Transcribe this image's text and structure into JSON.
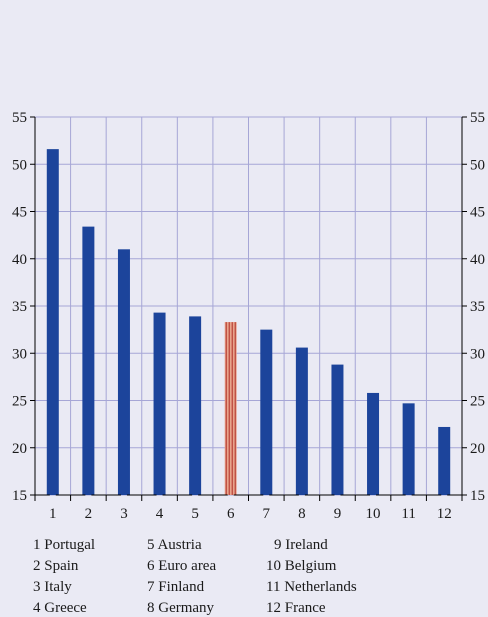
{
  "chart_data": {
    "type": "bar",
    "categories": [
      "1",
      "2",
      "3",
      "4",
      "5",
      "6",
      "7",
      "8",
      "9",
      "10",
      "11",
      "12"
    ],
    "values": [
      51.6,
      43.4,
      41.0,
      34.3,
      33.9,
      33.3,
      32.5,
      30.6,
      28.8,
      25.8,
      24.7,
      22.2
    ],
    "highlight_index": 5,
    "ylim": [
      15,
      55
    ],
    "yticks": [
      15,
      20,
      25,
      30,
      35,
      40,
      45,
      50,
      55
    ],
    "grid": true,
    "colors": {
      "background": "#eaeaf4",
      "bar": "#1c449b",
      "highlight_bar": "#e8a48c",
      "highlight_stripe": "#b0302a",
      "grid": "#a6a6d6"
    }
  },
  "legend": [
    {
      "num": "1",
      "name": "Portugal"
    },
    {
      "num": "2",
      "name": "Spain"
    },
    {
      "num": "3",
      "name": "Italy"
    },
    {
      "num": "4",
      "name": "Greece"
    },
    {
      "num": "5",
      "name": "Austria"
    },
    {
      "num": "6",
      "name": "Euro area"
    },
    {
      "num": "7",
      "name": "Finland"
    },
    {
      "num": "8",
      "name": "Germany"
    },
    {
      "num": "9",
      "name": "Ireland"
    },
    {
      "num": "10",
      "name": "Belgium"
    },
    {
      "num": "11",
      "name": "Netherlands"
    },
    {
      "num": "12",
      "name": "France"
    }
  ]
}
